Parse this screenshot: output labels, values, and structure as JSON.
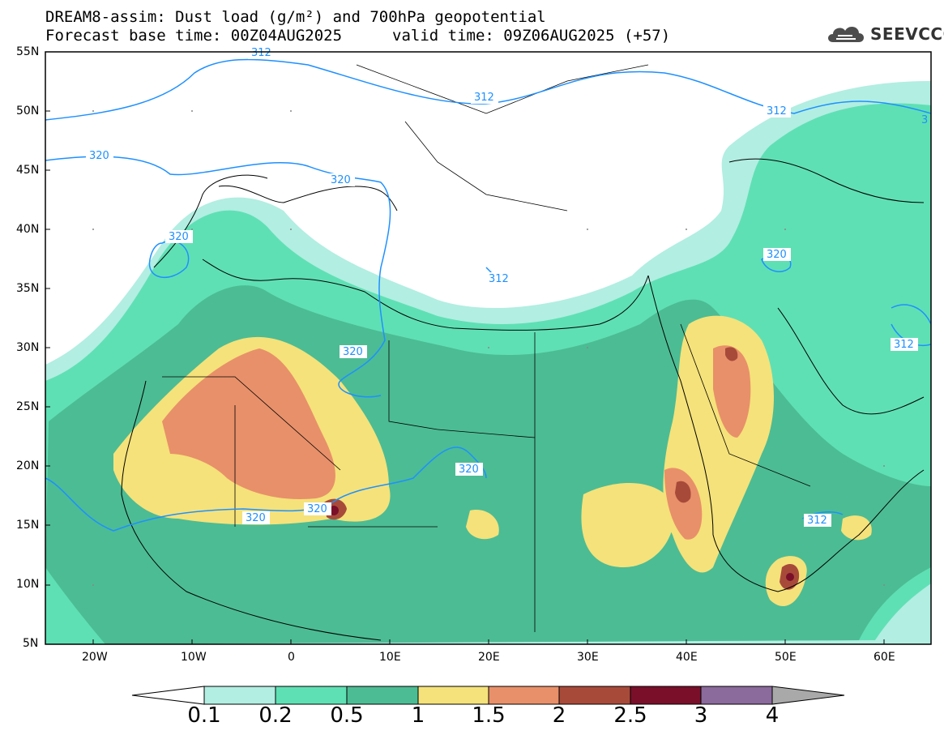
{
  "title": {
    "line1": "DREAM8-assim: Dust load (g/m²) and 700hPa geopotential",
    "line2": "Forecast base time: 00Z04AUG2025",
    "valid": "valid time: 09Z06AUG2025 (+57)"
  },
  "logo": {
    "text": "SEEVCCC",
    "icon": "cloud-icon"
  },
  "map": {
    "lat_labels": [
      "55N",
      "50N",
      "45N",
      "40N",
      "35N",
      "30N",
      "25N",
      "20N",
      "15N",
      "10N",
      "5N"
    ],
    "lon_labels": [
      "20W",
      "10W",
      "0",
      "10E",
      "20E",
      "30E",
      "40E",
      "50E",
      "60E"
    ],
    "contour_labels": [
      "312",
      "312",
      "312",
      "312",
      "312",
      "320",
      "320",
      "320",
      "320",
      "320",
      "320",
      "320",
      "312",
      "3"
    ],
    "colors": {
      "land_line": "#000000",
      "contour": "#1e90ff",
      "sea": "#ffffff"
    }
  },
  "colorbar": {
    "labels": [
      "0.1",
      "0.2",
      "0.5",
      "1",
      "1.5",
      "2",
      "2.5",
      "3",
      "4"
    ],
    "colors": [
      "#b2eee2",
      "#5fe0b4",
      "#4cbc94",
      "#f5e27a",
      "#e8906a",
      "#a84a3a",
      "#7a0f2a",
      "#8b6a9c",
      "#a9a9a9"
    ]
  }
}
